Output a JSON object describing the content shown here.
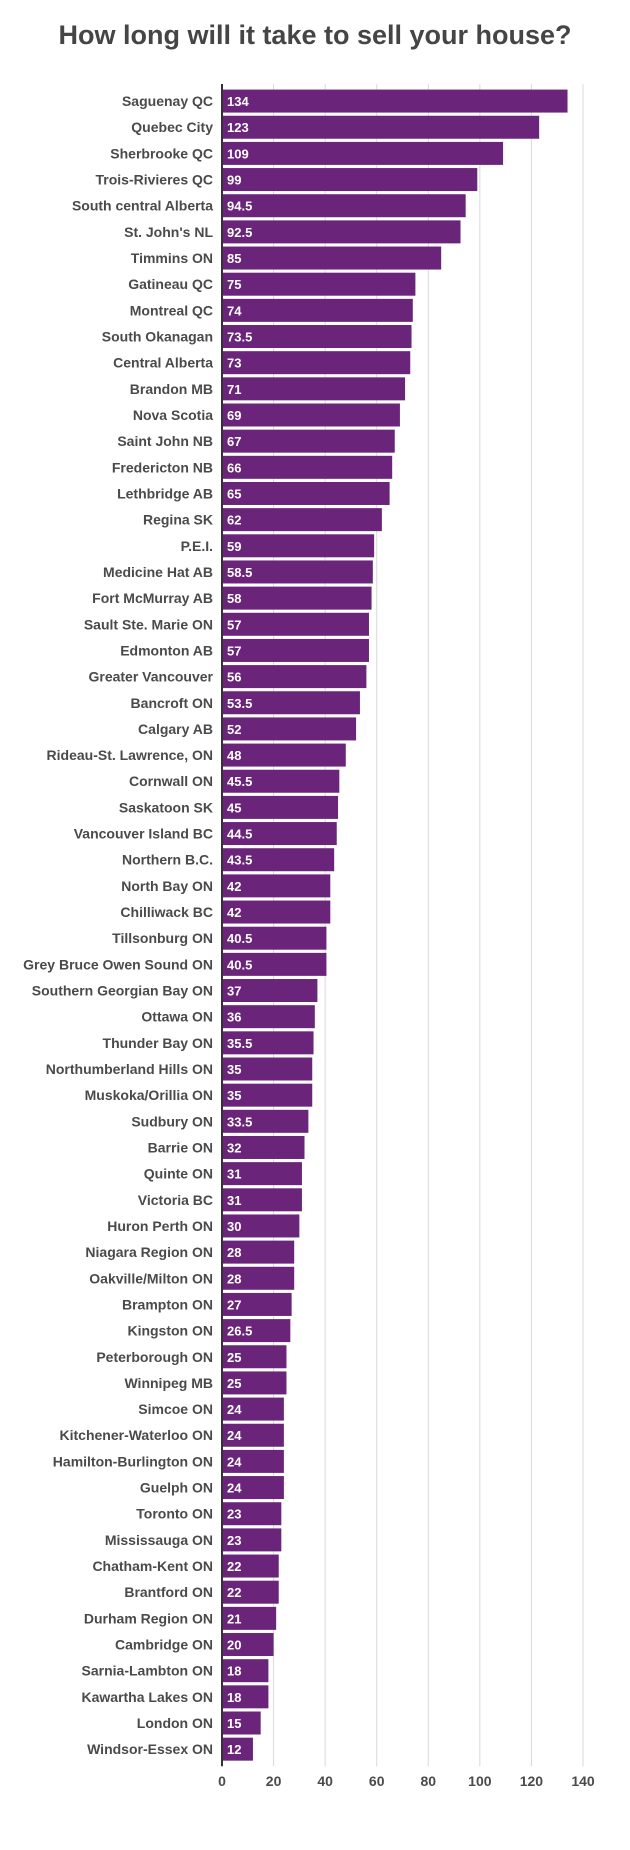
{
  "chart_data": {
    "type": "bar",
    "orientation": "horizontal",
    "title": "How long will it take to sell your house?",
    "xlabel": "",
    "ylabel": "",
    "xlim": [
      0,
      140
    ],
    "x_ticks": [
      "0",
      "20",
      "40",
      "60",
      "80",
      "100",
      "120",
      "140"
    ],
    "grid": true,
    "bar_color": "#6a2479",
    "categories": [
      "Saguenay QC",
      "Quebec City",
      "Sherbrooke QC",
      "Trois-Rivieres QC",
      "South central Alberta",
      "St. John's NL",
      "Timmins ON",
      "Gatineau QC",
      "Montreal QC",
      "South Okanagan",
      "Central Alberta",
      "Brandon MB",
      "Nova Scotia",
      "Saint John NB",
      "Fredericton NB",
      "Lethbridge AB",
      "Regina SK",
      "P.E.I.",
      "Medicine Hat AB",
      "Fort McMurray AB",
      "Sault Ste. Marie ON",
      "Edmonton AB",
      "Greater Vancouver",
      "Bancroft ON",
      "Calgary AB",
      "Rideau-St. Lawrence, ON",
      "Cornwall ON",
      "Saskatoon SK",
      "Vancouver Island BC",
      "Northern B.C.",
      "North Bay ON",
      "Chilliwack BC",
      "Tillsonburg ON",
      "Grey Bruce Owen Sound ON",
      "Southern Georgian Bay ON",
      "Ottawa ON",
      "Thunder Bay ON",
      "Northumberland Hills ON",
      "Muskoka/Orillia ON",
      "Sudbury ON",
      "Barrie ON",
      "Quinte ON",
      "Victoria BC",
      "Huron Perth ON",
      "Niagara Region ON",
      "Oakville/Milton ON",
      "Brampton ON",
      "Kingston ON",
      "Peterborough ON",
      "Winnipeg MB",
      "Simcoe ON",
      "Kitchener-Waterloo ON",
      "Hamilton-Burlington ON",
      "Guelph ON",
      "Toronto ON",
      "Mississauga ON",
      "Chatham-Kent ON",
      "Brantford ON",
      "Durham Region ON",
      "Cambridge ON",
      "Sarnia-Lambton ON",
      "Kawartha Lakes ON",
      "London ON",
      "Windsor-Essex ON"
    ],
    "values": [
      134,
      123,
      109,
      99,
      94.5,
      92.5,
      85,
      75,
      74,
      73.5,
      73,
      71,
      69,
      67,
      66,
      65,
      62,
      59,
      58.5,
      58,
      57,
      57,
      56,
      53.5,
      52,
      48,
      45.5,
      45,
      44.5,
      43.5,
      42,
      42,
      40.5,
      40.5,
      37,
      36,
      35.5,
      35,
      35,
      33.5,
      32,
      31,
      31,
      30,
      28,
      28,
      27,
      26.5,
      25,
      25,
      24,
      24,
      24,
      24,
      23,
      23,
      22,
      22,
      21,
      20,
      18,
      18,
      15,
      12
    ]
  }
}
